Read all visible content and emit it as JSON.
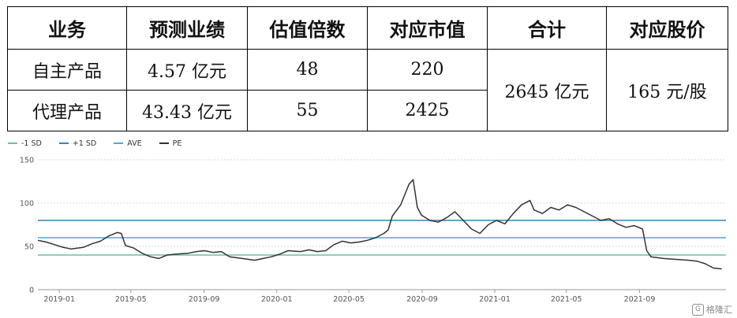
{
  "table": {
    "headers": [
      "业务",
      "预测业绩",
      "估值倍数",
      "对应市值",
      "合计",
      "对应股价"
    ],
    "rows": [
      [
        "自主产品",
        "4.57 亿元",
        "48",
        "220"
      ],
      [
        "代理产品",
        "43.43 亿元",
        "55",
        "2425"
      ]
    ],
    "total": "2645 亿元",
    "price": "165 元/股"
  },
  "chart_data": {
    "type": "line",
    "title": "",
    "xlabel": "",
    "ylabel": "",
    "ylim": [
      0,
      150
    ],
    "yticks": [
      "0",
      "50",
      "100",
      "150"
    ],
    "xticks": [
      "2019-01",
      "2019-05",
      "2019-09",
      "2020-01",
      "2020-05",
      "2020-09",
      "2021-01",
      "2021-05",
      "2021-09"
    ],
    "grid": "horizontal",
    "legend_position": "top-left",
    "legend": [
      {
        "name": "-1 SD",
        "color": "#6cbfa0"
      },
      {
        "name": "+1 SD",
        "color": "#2f86b2"
      },
      {
        "name": "AVE",
        "color": "#4fa8d4"
      },
      {
        "name": "PE",
        "color": "#333333"
      }
    ],
    "reference_lines": [
      {
        "name": "+1 SD",
        "value": 80,
        "color": "#2f86b2"
      },
      {
        "name": "AVE",
        "value": 60,
        "color": "#4fa8d4"
      },
      {
        "name": "-1 SD",
        "value": 40,
        "color": "#6cbfa0"
      }
    ],
    "series": [
      {
        "name": "PE",
        "color": "#333333",
        "points": [
          [
            "2018-11-26",
            57
          ],
          [
            "2018-12-10",
            55
          ],
          [
            "2018-12-24",
            52
          ],
          [
            "2019-01-07",
            49
          ],
          [
            "2019-01-21",
            47
          ],
          [
            "2019-02-11",
            49
          ],
          [
            "2019-02-25",
            53
          ],
          [
            "2019-03-11",
            56
          ],
          [
            "2019-03-25",
            62
          ],
          [
            "2019-04-08",
            66
          ],
          [
            "2019-04-15",
            65
          ],
          [
            "2019-04-22",
            51
          ],
          [
            "2019-05-06",
            48
          ],
          [
            "2019-05-20",
            42
          ],
          [
            "2019-06-03",
            38
          ],
          [
            "2019-06-17",
            36
          ],
          [
            "2019-07-01",
            40
          ],
          [
            "2019-07-15",
            41
          ],
          [
            "2019-08-05",
            42
          ],
          [
            "2019-08-19",
            44
          ],
          [
            "2019-09-02",
            45
          ],
          [
            "2019-09-16",
            43
          ],
          [
            "2019-09-30",
            44
          ],
          [
            "2019-10-14",
            38
          ],
          [
            "2019-11-04",
            36
          ],
          [
            "2019-11-25",
            34
          ],
          [
            "2019-12-09",
            36
          ],
          [
            "2019-12-23",
            38
          ],
          [
            "2020-01-06",
            41
          ],
          [
            "2020-01-20",
            45
          ],
          [
            "2020-02-10",
            44
          ],
          [
            "2020-02-24",
            46
          ],
          [
            "2020-03-09",
            44
          ],
          [
            "2020-03-23",
            45
          ],
          [
            "2020-04-06",
            52
          ],
          [
            "2020-04-20",
            56
          ],
          [
            "2020-05-04",
            54
          ],
          [
            "2020-05-18",
            55
          ],
          [
            "2020-06-01",
            57
          ],
          [
            "2020-06-15",
            60
          ],
          [
            "2020-06-29",
            65
          ],
          [
            "2020-07-06",
            69
          ],
          [
            "2020-07-13",
            85
          ],
          [
            "2020-07-27",
            98
          ],
          [
            "2020-08-03",
            110
          ],
          [
            "2020-08-10",
            122
          ],
          [
            "2020-08-17",
            127
          ],
          [
            "2020-08-24",
            95
          ],
          [
            "2020-08-31",
            86
          ],
          [
            "2020-09-14",
            80
          ],
          [
            "2020-09-28",
            78
          ],
          [
            "2020-10-12",
            83
          ],
          [
            "2020-10-26",
            90
          ],
          [
            "2020-11-09",
            80
          ],
          [
            "2020-11-23",
            70
          ],
          [
            "2020-12-07",
            65
          ],
          [
            "2020-12-21",
            75
          ],
          [
            "2021-01-04",
            80
          ],
          [
            "2021-01-18",
            76
          ],
          [
            "2021-02-01",
            88
          ],
          [
            "2021-02-15",
            98
          ],
          [
            "2021-03-01",
            103
          ],
          [
            "2021-03-08",
            92
          ],
          [
            "2021-03-22",
            88
          ],
          [
            "2021-04-05",
            95
          ],
          [
            "2021-04-19",
            92
          ],
          [
            "2021-05-03",
            98
          ],
          [
            "2021-05-17",
            95
          ],
          [
            "2021-05-31",
            90
          ],
          [
            "2021-06-14",
            85
          ],
          [
            "2021-06-28",
            80
          ],
          [
            "2021-07-12",
            82
          ],
          [
            "2021-07-26",
            76
          ],
          [
            "2021-08-09",
            72
          ],
          [
            "2021-08-23",
            74
          ],
          [
            "2021-09-06",
            70
          ],
          [
            "2021-09-13",
            45
          ],
          [
            "2021-09-20",
            38
          ],
          [
            "2021-10-11",
            36
          ],
          [
            "2021-11-01",
            35
          ],
          [
            "2021-11-22",
            34
          ],
          [
            "2021-12-06",
            33
          ],
          [
            "2021-12-20",
            30
          ],
          [
            "2022-01-03",
            25
          ],
          [
            "2022-01-17",
            24
          ]
        ]
      }
    ]
  },
  "watermark": "格隆汇",
  "watermark_logo": "G"
}
